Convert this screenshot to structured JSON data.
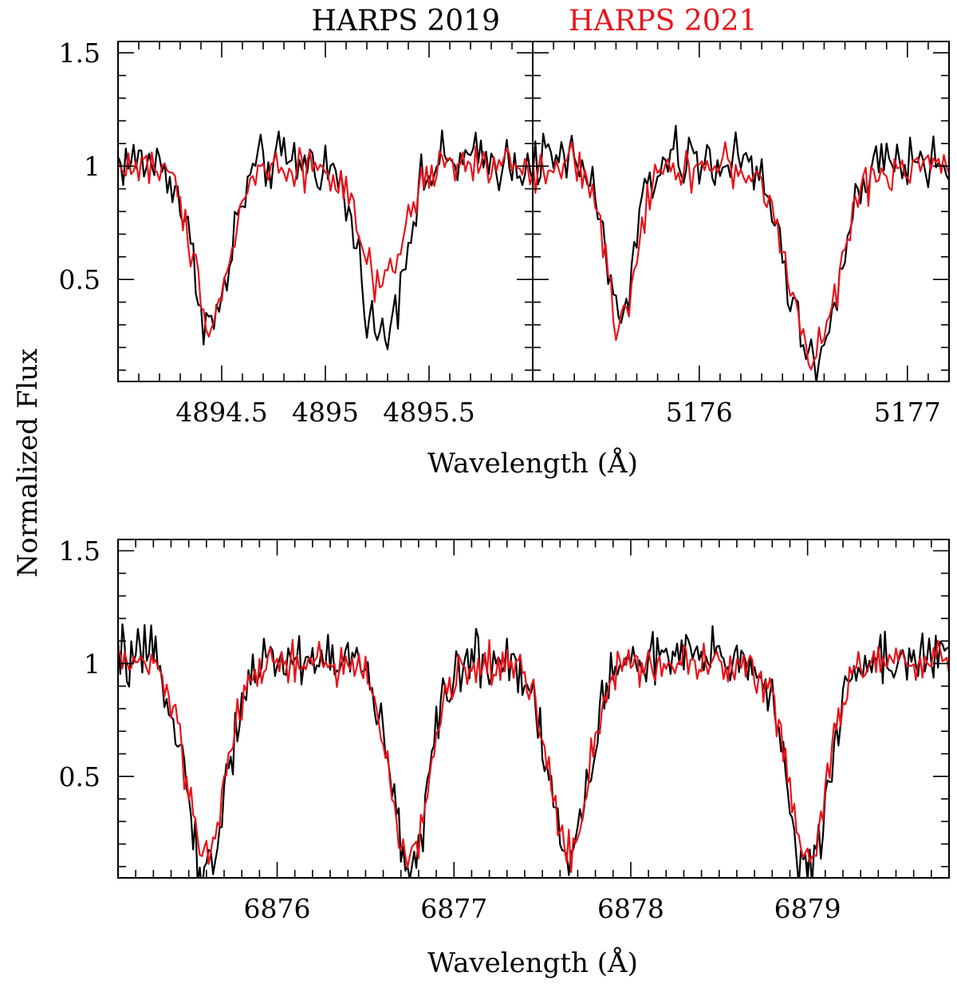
{
  "chart_data": {
    "type": "line",
    "legend": [
      {
        "name": "HARPS 2019",
        "color": "#000000"
      },
      {
        "name": "HARPS 2021",
        "color": "#e8141c"
      }
    ],
    "ylabel": "Normalized Flux",
    "ylim": [
      0.05,
      1.55
    ],
    "yticks": [
      {
        "value": 0.5,
        "label": "0.5"
      },
      {
        "value": 1.0,
        "label": "1"
      },
      {
        "value": 1.5,
        "label": "1.5"
      }
    ],
    "panels": [
      {
        "id": "top-left",
        "xlabel": "Wavelength (Å)",
        "xlim": [
          4894.0,
          4896.0
        ],
        "xticks": [
          {
            "value": 4894.5,
            "label": "4894.5"
          },
          {
            "value": 4895.0,
            "label": "4895"
          },
          {
            "value": 4895.5,
            "label": "4895.5"
          }
        ],
        "lines": [
          {
            "center": 4894.45,
            "sigma": 0.09,
            "depth": {
              "HARPS 2019": 0.72,
              "HARPS 2021": 0.66
            }
          },
          {
            "center": 4895.27,
            "sigma": 0.1,
            "depth": {
              "HARPS 2019": 0.78,
              "HARPS 2021": 0.55
            }
          }
        ]
      },
      {
        "id": "top-right",
        "xlabel": "Wavelength (Å)",
        "xlim": [
          5175.2,
          5177.2
        ],
        "xticks": [
          {
            "value": 5176.0,
            "label": "5176"
          },
          {
            "value": 5177.0,
            "label": "5177"
          }
        ],
        "lines": [
          {
            "center": 5175.62,
            "sigma": 0.07,
            "depth": {
              "HARPS 2019": 0.68,
              "HARPS 2021": 0.7
            }
          },
          {
            "center": 5176.55,
            "sigma": 0.12,
            "depth": {
              "HARPS 2019": 0.88,
              "HARPS 2021": 0.82
            }
          }
        ]
      },
      {
        "id": "bottom",
        "xlabel": "Wavelength (Å)",
        "xlim": [
          6875.1,
          6879.8
        ],
        "xticks": [
          {
            "value": 6876.0,
            "label": "6876"
          },
          {
            "value": 6877.0,
            "label": "6877"
          },
          {
            "value": 6878.0,
            "label": "6878"
          },
          {
            "value": 6879.0,
            "label": "6879"
          }
        ],
        "lines": [
          {
            "center": 6875.6,
            "sigma": 0.11,
            "depth": {
              "HARPS 2019": 0.95,
              "HARPS 2021": 0.86
            }
          },
          {
            "center": 6876.75,
            "sigma": 0.11,
            "depth": {
              "HARPS 2019": 0.9,
              "HARPS 2021": 0.87
            }
          },
          {
            "center": 6877.65,
            "sigma": 0.11,
            "depth": {
              "HARPS 2019": 0.88,
              "HARPS 2021": 0.82
            }
          },
          {
            "center": 6879.0,
            "sigma": 0.11,
            "depth": {
              "HARPS 2019": 0.98,
              "HARPS 2021": 0.84
            }
          }
        ]
      }
    ],
    "series_style": {
      "HARPS 2019": {
        "continuum": 1.02,
        "noise": 0.09,
        "samples_per_angstrom": 80
      },
      "HARPS 2021": {
        "continuum": 1.0,
        "noise": 0.065,
        "samples_per_angstrom": 80
      }
    }
  }
}
